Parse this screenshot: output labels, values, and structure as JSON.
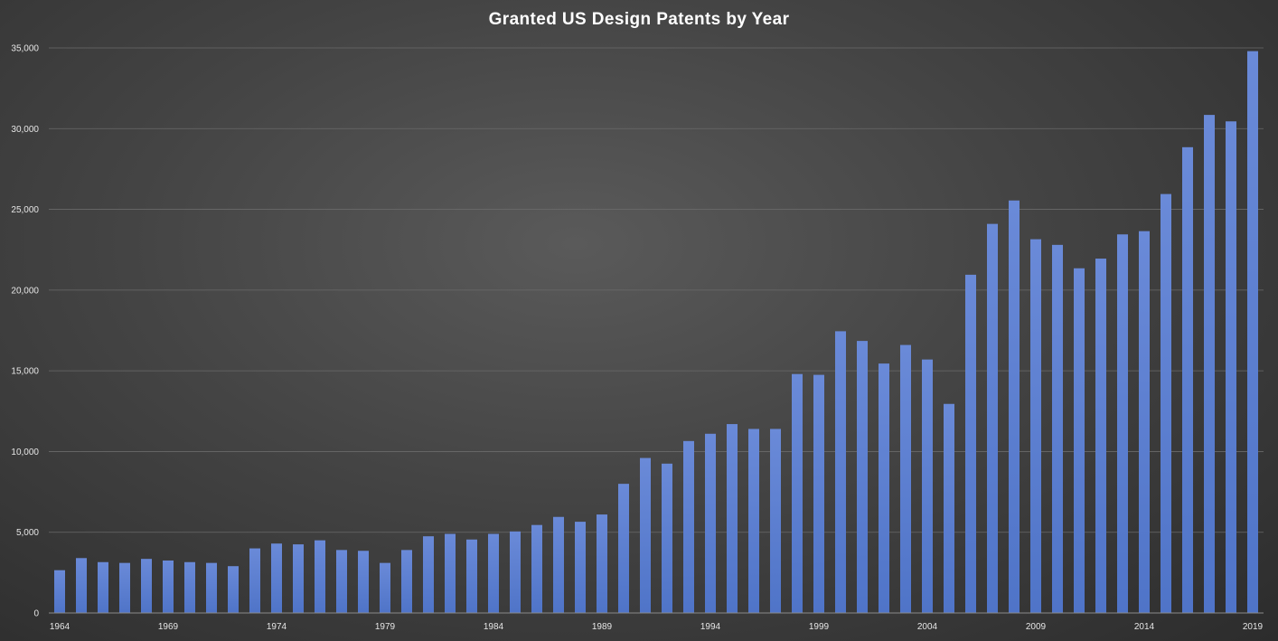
{
  "chart_data": {
    "type": "bar",
    "title": "Granted US Design Patents by Year",
    "xlabel": "",
    "ylabel": "",
    "ylim": [
      0,
      35000
    ],
    "yticks": [
      0,
      5000,
      10000,
      15000,
      20000,
      25000,
      30000,
      35000
    ],
    "ytick_labels": [
      "0",
      "5,000",
      "10,000",
      "15,000",
      "20,000",
      "25,000",
      "30,000",
      "35,000"
    ],
    "grid": true,
    "legend": "none",
    "bar_color": "#4f74c8",
    "categories": [
      1964,
      1965,
      1966,
      1967,
      1968,
      1969,
      1970,
      1971,
      1972,
      1973,
      1974,
      1975,
      1976,
      1977,
      1978,
      1979,
      1980,
      1981,
      1982,
      1983,
      1984,
      1985,
      1986,
      1987,
      1988,
      1989,
      1990,
      1991,
      1992,
      1993,
      1994,
      1995,
      1996,
      1997,
      1998,
      1999,
      2000,
      2001,
      2002,
      2003,
      2004,
      2005,
      2006,
      2007,
      2008,
      2009,
      2010,
      2011,
      2012,
      2013,
      2014,
      2015,
      2016,
      2017,
      2018,
      2019
    ],
    "xtick_labels": [
      "1964",
      "1969",
      "1974",
      "1979",
      "1984",
      "1989",
      "1994",
      "1999",
      "2004",
      "2009",
      "2014",
      "2019"
    ],
    "values": [
      2650,
      3400,
      3150,
      3100,
      3350,
      3250,
      3150,
      3100,
      2900,
      4000,
      4300,
      4250,
      4500,
      3900,
      3850,
      3100,
      3900,
      4750,
      4900,
      4550,
      4900,
      5050,
      5450,
      5950,
      5650,
      6100,
      8000,
      9600,
      9250,
      10650,
      11100,
      11700,
      11400,
      11400,
      14800,
      14750,
      17450,
      16850,
      15450,
      16600,
      15700,
      12950,
      20950,
      24100,
      25550,
      23150,
      22800,
      21350,
      21950,
      23450,
      23650,
      25950,
      28850,
      30850,
      30450,
      34800
    ]
  }
}
